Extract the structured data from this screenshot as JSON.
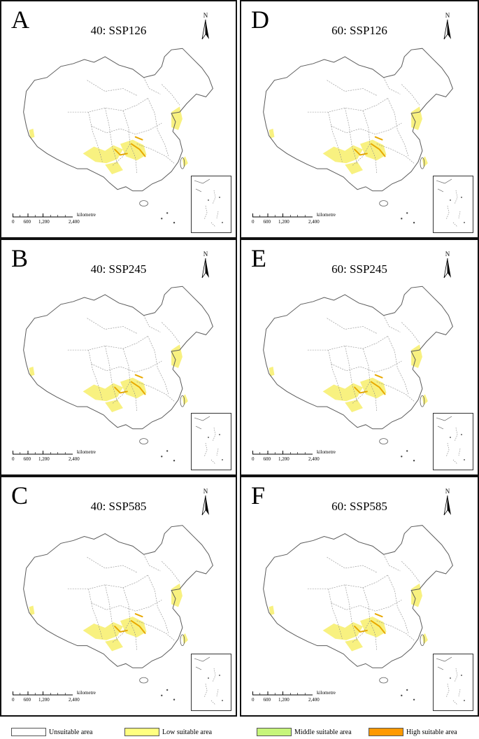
{
  "panels": [
    {
      "letter": "A",
      "title": "40: SSP126"
    },
    {
      "letter": "D",
      "title": "60: SSP126"
    },
    {
      "letter": "B",
      "title": "40: SSP245"
    },
    {
      "letter": "E",
      "title": "60: SSP245"
    },
    {
      "letter": "C",
      "title": "40: SSP585"
    },
    {
      "letter": "F",
      "title": "60: SSP585"
    }
  ],
  "north_label": "N",
  "scale": {
    "ticks": [
      "0",
      "600",
      "1,200",
      "2,400"
    ],
    "unit": "kilometre"
  },
  "legend": [
    {
      "label": "Unsuitable area",
      "color": "#ffffff"
    },
    {
      "label": "Low suitable area",
      "color": "#ffff80"
    },
    {
      "label": "Middle suitable area",
      "color": "#c6f57a"
    },
    {
      "label": "High suitable area",
      "color": "#ff9900"
    }
  ],
  "colors": {
    "border": "#5a5a5a",
    "low": "#f7ee6a",
    "high": "#e8a800"
  }
}
